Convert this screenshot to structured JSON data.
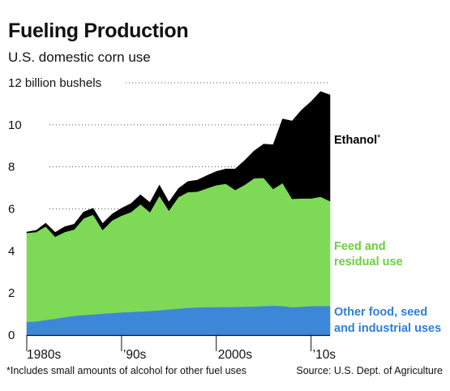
{
  "title": "Fueling Production",
  "subtitle": "U.S. domestic corn use",
  "footnote": "*Includes small amounts of alcohol for other fuel uses",
  "source": "Source: U.S. Dept. of Agriculture",
  "colors": {
    "ethanol": "#000000",
    "feed": "#7ed957",
    "other": "#3c87d8",
    "grid": "#555555"
  },
  "chart_data": {
    "type": "area",
    "stacked": true,
    "ylabel": "billion bushels",
    "ylim": [
      0,
      12
    ],
    "xlim": [
      1980,
      2012
    ],
    "yticks": [
      {
        "value": 0,
        "label": "0"
      },
      {
        "value": 2,
        "label": "2"
      },
      {
        "value": 4,
        "label": "4"
      },
      {
        "value": 6,
        "label": "6"
      },
      {
        "value": 8,
        "label": "8"
      },
      {
        "value": 10,
        "label": "10"
      },
      {
        "value": 12,
        "label": "12 billion bushels"
      }
    ],
    "xticks": [
      {
        "value": 1980,
        "label": "1980s"
      },
      {
        "value": 1990,
        "label": "’90s"
      },
      {
        "value": 2000,
        "label": "2000s"
      },
      {
        "value": 2010,
        "label": "’10s"
      }
    ],
    "x": [
      1980,
      1981,
      1982,
      1983,
      1984,
      1985,
      1986,
      1987,
      1988,
      1989,
      1990,
      1991,
      1992,
      1993,
      1994,
      1995,
      1996,
      1997,
      1998,
      1999,
      2000,
      2001,
      2002,
      2003,
      2004,
      2005,
      2006,
      2007,
      2008,
      2009,
      2010,
      2011,
      2012
    ],
    "series": [
      {
        "name": "Other food, seed and industrial uses",
        "key": "other",
        "values": [
          0.63,
          0.65,
          0.72,
          0.78,
          0.85,
          0.92,
          0.95,
          0.98,
          1.02,
          1.05,
          1.08,
          1.1,
          1.12,
          1.15,
          1.18,
          1.22,
          1.26,
          1.3,
          1.32,
          1.33,
          1.33,
          1.34,
          1.34,
          1.35,
          1.36,
          1.38,
          1.4,
          1.38,
          1.33,
          1.35,
          1.38,
          1.38,
          1.38
        ]
      },
      {
        "name": "Feed and residual use",
        "key": "feed",
        "values": [
          4.23,
          4.25,
          4.45,
          3.9,
          4.05,
          4.1,
          4.6,
          4.75,
          3.98,
          4.4,
          4.6,
          4.75,
          5.1,
          4.7,
          5.45,
          4.7,
          5.3,
          5.5,
          5.5,
          5.65,
          5.8,
          5.86,
          5.56,
          5.8,
          6.1,
          6.1,
          5.55,
          5.85,
          5.15,
          5.15,
          5.12,
          5.2,
          4.99
        ]
      },
      {
        "name": "Ethanol*",
        "key": "ethanol",
        "values": [
          0.04,
          0.08,
          0.15,
          0.2,
          0.25,
          0.25,
          0.3,
          0.3,
          0.3,
          0.3,
          0.35,
          0.4,
          0.45,
          0.45,
          0.5,
          0.4,
          0.4,
          0.5,
          0.55,
          0.6,
          0.65,
          0.7,
          1.0,
          1.15,
          1.3,
          1.6,
          2.1,
          3.05,
          3.7,
          4.2,
          4.6,
          5.0,
          5.05
        ]
      }
    ],
    "labels": {
      "ethanol": "Ethanol",
      "ethanol_mark": "*",
      "feed": [
        "Feed and",
        "residual use"
      ],
      "other": [
        "Other food, seed",
        "and industrial uses"
      ]
    }
  }
}
